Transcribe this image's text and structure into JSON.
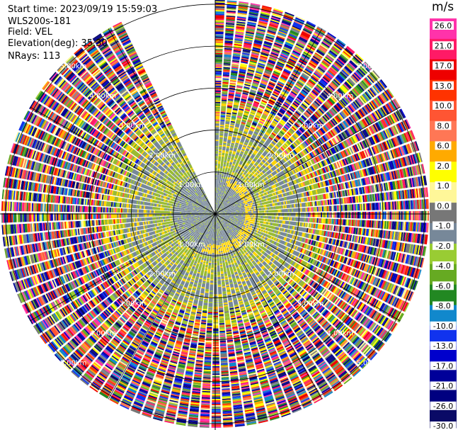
{
  "info": {
    "start_time": "Start time: 2023/09/19 15:59:03",
    "station": "WLS200s-181",
    "field": "Field: VEL",
    "elevation": "Elevation(deg): 35.30",
    "nrays": "NRays: 113"
  },
  "chart_data": {
    "type": "heatmap",
    "projection": "polar-ppi",
    "field": "VEL",
    "units": "m/s",
    "range_rings_km": [
      1,
      2,
      3,
      4,
      5
    ],
    "range_labels": [
      "1.00km",
      "2.00km",
      "3.00km",
      "4.00km",
      "5.00km"
    ],
    "max_range_km": 5.1,
    "missing_sector_deg": [
      335,
      360
    ],
    "colorbar": {
      "ticks": [
        "26.0",
        "21.0",
        "17.0",
        "13.0",
        "10.0",
        "8.0",
        "6.0",
        "2.0",
        "1.0",
        "0.0",
        "-1.0",
        "-2.0",
        "-4.0",
        "-6.0",
        "-8.0",
        "-10.0",
        "-13.0",
        "-17.0",
        "-21.0",
        "-26.0",
        "-30.0"
      ],
      "colors": [
        "#ff33aa",
        "#ff1a66",
        "#ee0000",
        "#ff3300",
        "#ff5533",
        "#ff7755",
        "#ffaa00",
        "#ffff00",
        "#fff799",
        "#777777",
        "#778899",
        "#99cc33",
        "#66aa22",
        "#228822",
        "#1188cc",
        "#1133ee",
        "#0000cc",
        "#000099",
        "#000080",
        "#0a0a66"
      ]
    }
  }
}
